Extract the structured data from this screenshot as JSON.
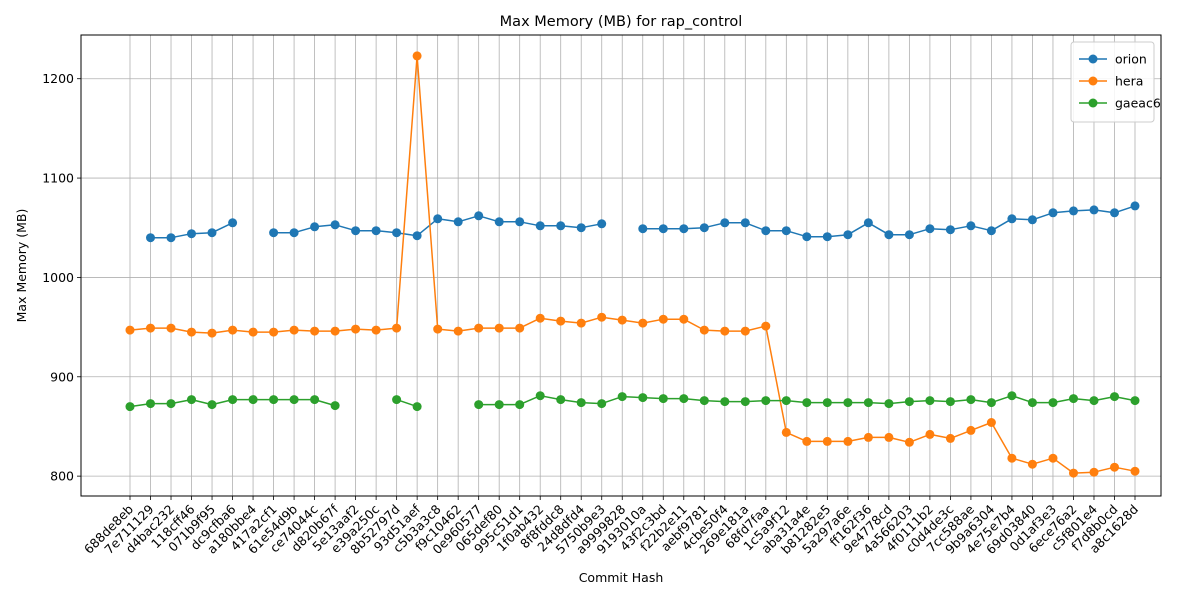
{
  "chart_data": {
    "type": "line",
    "title": "Max Memory (MB) for rap_control",
    "xlabel": "Commit Hash",
    "ylabel": "Max Memory (MB)",
    "ylim": [
      780,
      1244
    ],
    "yticks": [
      800,
      900,
      1000,
      1100,
      1200
    ],
    "grid": true,
    "legend_position": "top-right",
    "categories": [
      "688de8eb",
      "7e711129",
      "d4bac232",
      "118cff46",
      "071b9f95",
      "dc9cfba6",
      "a180bbe4",
      "417a2cf1",
      "61e54d9b",
      "ce74044c",
      "d820b67f",
      "5e13aaf2",
      "e39a250c",
      "8b52797d",
      "93d51aef",
      "c5b3a3c8",
      "f9c10462",
      "0e960577",
      "065def80",
      "995c51d1",
      "1f0ab432",
      "8f8fddc8",
      "24d8dfd4",
      "5750b9e3",
      "a9999828",
      "9193010a",
      "43f2c3bd",
      "f22b2e11",
      "aebf9781",
      "4cbe50f4",
      "269e181a",
      "68fd7faa",
      "1c5a9f12",
      "aba31a4e",
      "b81282e5",
      "5a297a6e",
      "ff162f36",
      "9e4778cd",
      "4a566203",
      "4f0111b2",
      "c0d4de3c",
      "7cc588ae",
      "9b9a6304",
      "4e75e7b4",
      "69d03840",
      "0d1af3e3",
      "6ece76a2",
      "c5f801e4",
      "f7d8b0cd",
      "a8c1628d"
    ],
    "series": [
      {
        "name": "orion",
        "color": "#1f77b4",
        "values": [
          null,
          1040,
          1040,
          1044,
          1045,
          1055,
          null,
          1045,
          1045,
          1051,
          1053,
          1047,
          1047,
          1045,
          1042,
          1059,
          1056,
          1062,
          1056,
          1056,
          1052,
          1052,
          1050,
          1054,
          null,
          1049,
          1049,
          1049,
          1050,
          1055,
          1055,
          1047,
          1047,
          1041,
          1041,
          1043,
          1055,
          1043,
          1043,
          1049,
          1048,
          1052,
          1047,
          1059,
          1058,
          1065,
          1067,
          1068,
          1065,
          1072
        ]
      },
      {
        "name": "hera",
        "color": "#ff7f0e",
        "values": [
          947,
          949,
          949,
          945,
          944,
          947,
          945,
          945,
          947,
          946,
          946,
          948,
          947,
          949,
          1223,
          948,
          946,
          949,
          949,
          949,
          959,
          956,
          954,
          960,
          957,
          954,
          958,
          958,
          947,
          946,
          946,
          951,
          844,
          835,
          835,
          835,
          839,
          839,
          834,
          842,
          838,
          846,
          854,
          818,
          812,
          818,
          803,
          804,
          809,
          805
        ]
      },
      {
        "name": "gaeac6",
        "color": "#2ca02c",
        "values": [
          870,
          873,
          873,
          877,
          872,
          877,
          877,
          877,
          877,
          877,
          871,
          null,
          null,
          877,
          870,
          null,
          null,
          872,
          872,
          872,
          881,
          877,
          874,
          873,
          880,
          879,
          878,
          878,
          876,
          875,
          875,
          876,
          876,
          874,
          874,
          874,
          874,
          873,
          875,
          876,
          875,
          877,
          874,
          881,
          874,
          874,
          878,
          876,
          880,
          876
        ]
      }
    ]
  }
}
